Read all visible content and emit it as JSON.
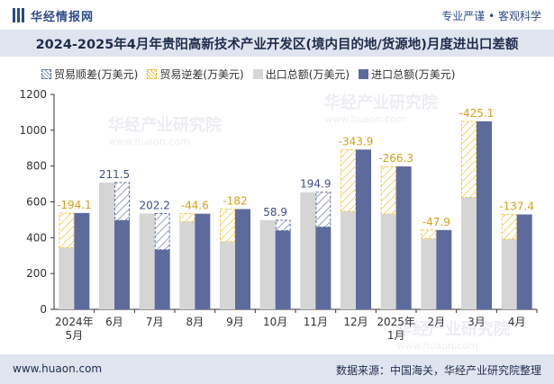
{
  "header": {
    "logo_text": "华经情报网",
    "slogan": "专业严谨 • 客观科学"
  },
  "title": "2024-2025年4月年贵阳高新技术产业开发区(境内目的地/货源地)月度进出口差额",
  "footer": {
    "website": "www.huaon.com",
    "source": "数据来源：中国海关，华经产业研究院整理"
  },
  "watermarks": [
    {
      "text": "华经产业研究院",
      "sub": "www.huaon.com"
    },
    {
      "text": "华经产业研究院",
      "sub": "www.huaon.com"
    },
    {
      "text": "华经产业研究院",
      "sub": "www.huaon.com"
    }
  ],
  "colors": {
    "export": "#d5d5d5",
    "import": "#5d6a9c",
    "surplus": "#5a6fa3",
    "deficit": "#f2c94c"
  },
  "chart_data": {
    "type": "bar",
    "categories": [
      "2024年\n5月",
      "6月",
      "7月",
      "8月",
      "9月",
      "10月",
      "11月",
      "12月",
      "2025年\n1月",
      "2月",
      "3月",
      "4月"
    ],
    "series": [
      {
        "name": "出口总额(万美元)",
        "values": [
          344,
          708,
          535,
          490,
          378,
          498,
          654,
          548,
          532,
          395,
          625,
          392
        ]
      },
      {
        "name": "进口总额(万美元)",
        "values": [
          538,
          497,
          333,
          534,
          560,
          440,
          460,
          892,
          798,
          443,
          1050,
          530
        ]
      }
    ],
    "balance": {
      "surplus_name": "贸易顺差(万美元)",
      "deficit_name": "贸易逆差(万美元)",
      "values": [
        -194.1,
        211.5,
        202.2,
        -44.6,
        -182,
        58.9,
        194.9,
        -343.9,
        -266.3,
        -47.9,
        -425.1,
        -137.4
      ],
      "labels": [
        "-194.1",
        "211.5",
        "202.2",
        "-44.6",
        "-182",
        "58.9",
        "194.9",
        "-343.9",
        "-266.3",
        "-47.9",
        "-425.1",
        "-137.4"
      ]
    },
    "ylim": [
      0,
      1200
    ],
    "yticks": [
      0,
      200,
      400,
      600,
      800,
      1000,
      1200
    ],
    "xlabel": "",
    "ylabel": "",
    "grid": false,
    "legend_position": "top-left"
  }
}
